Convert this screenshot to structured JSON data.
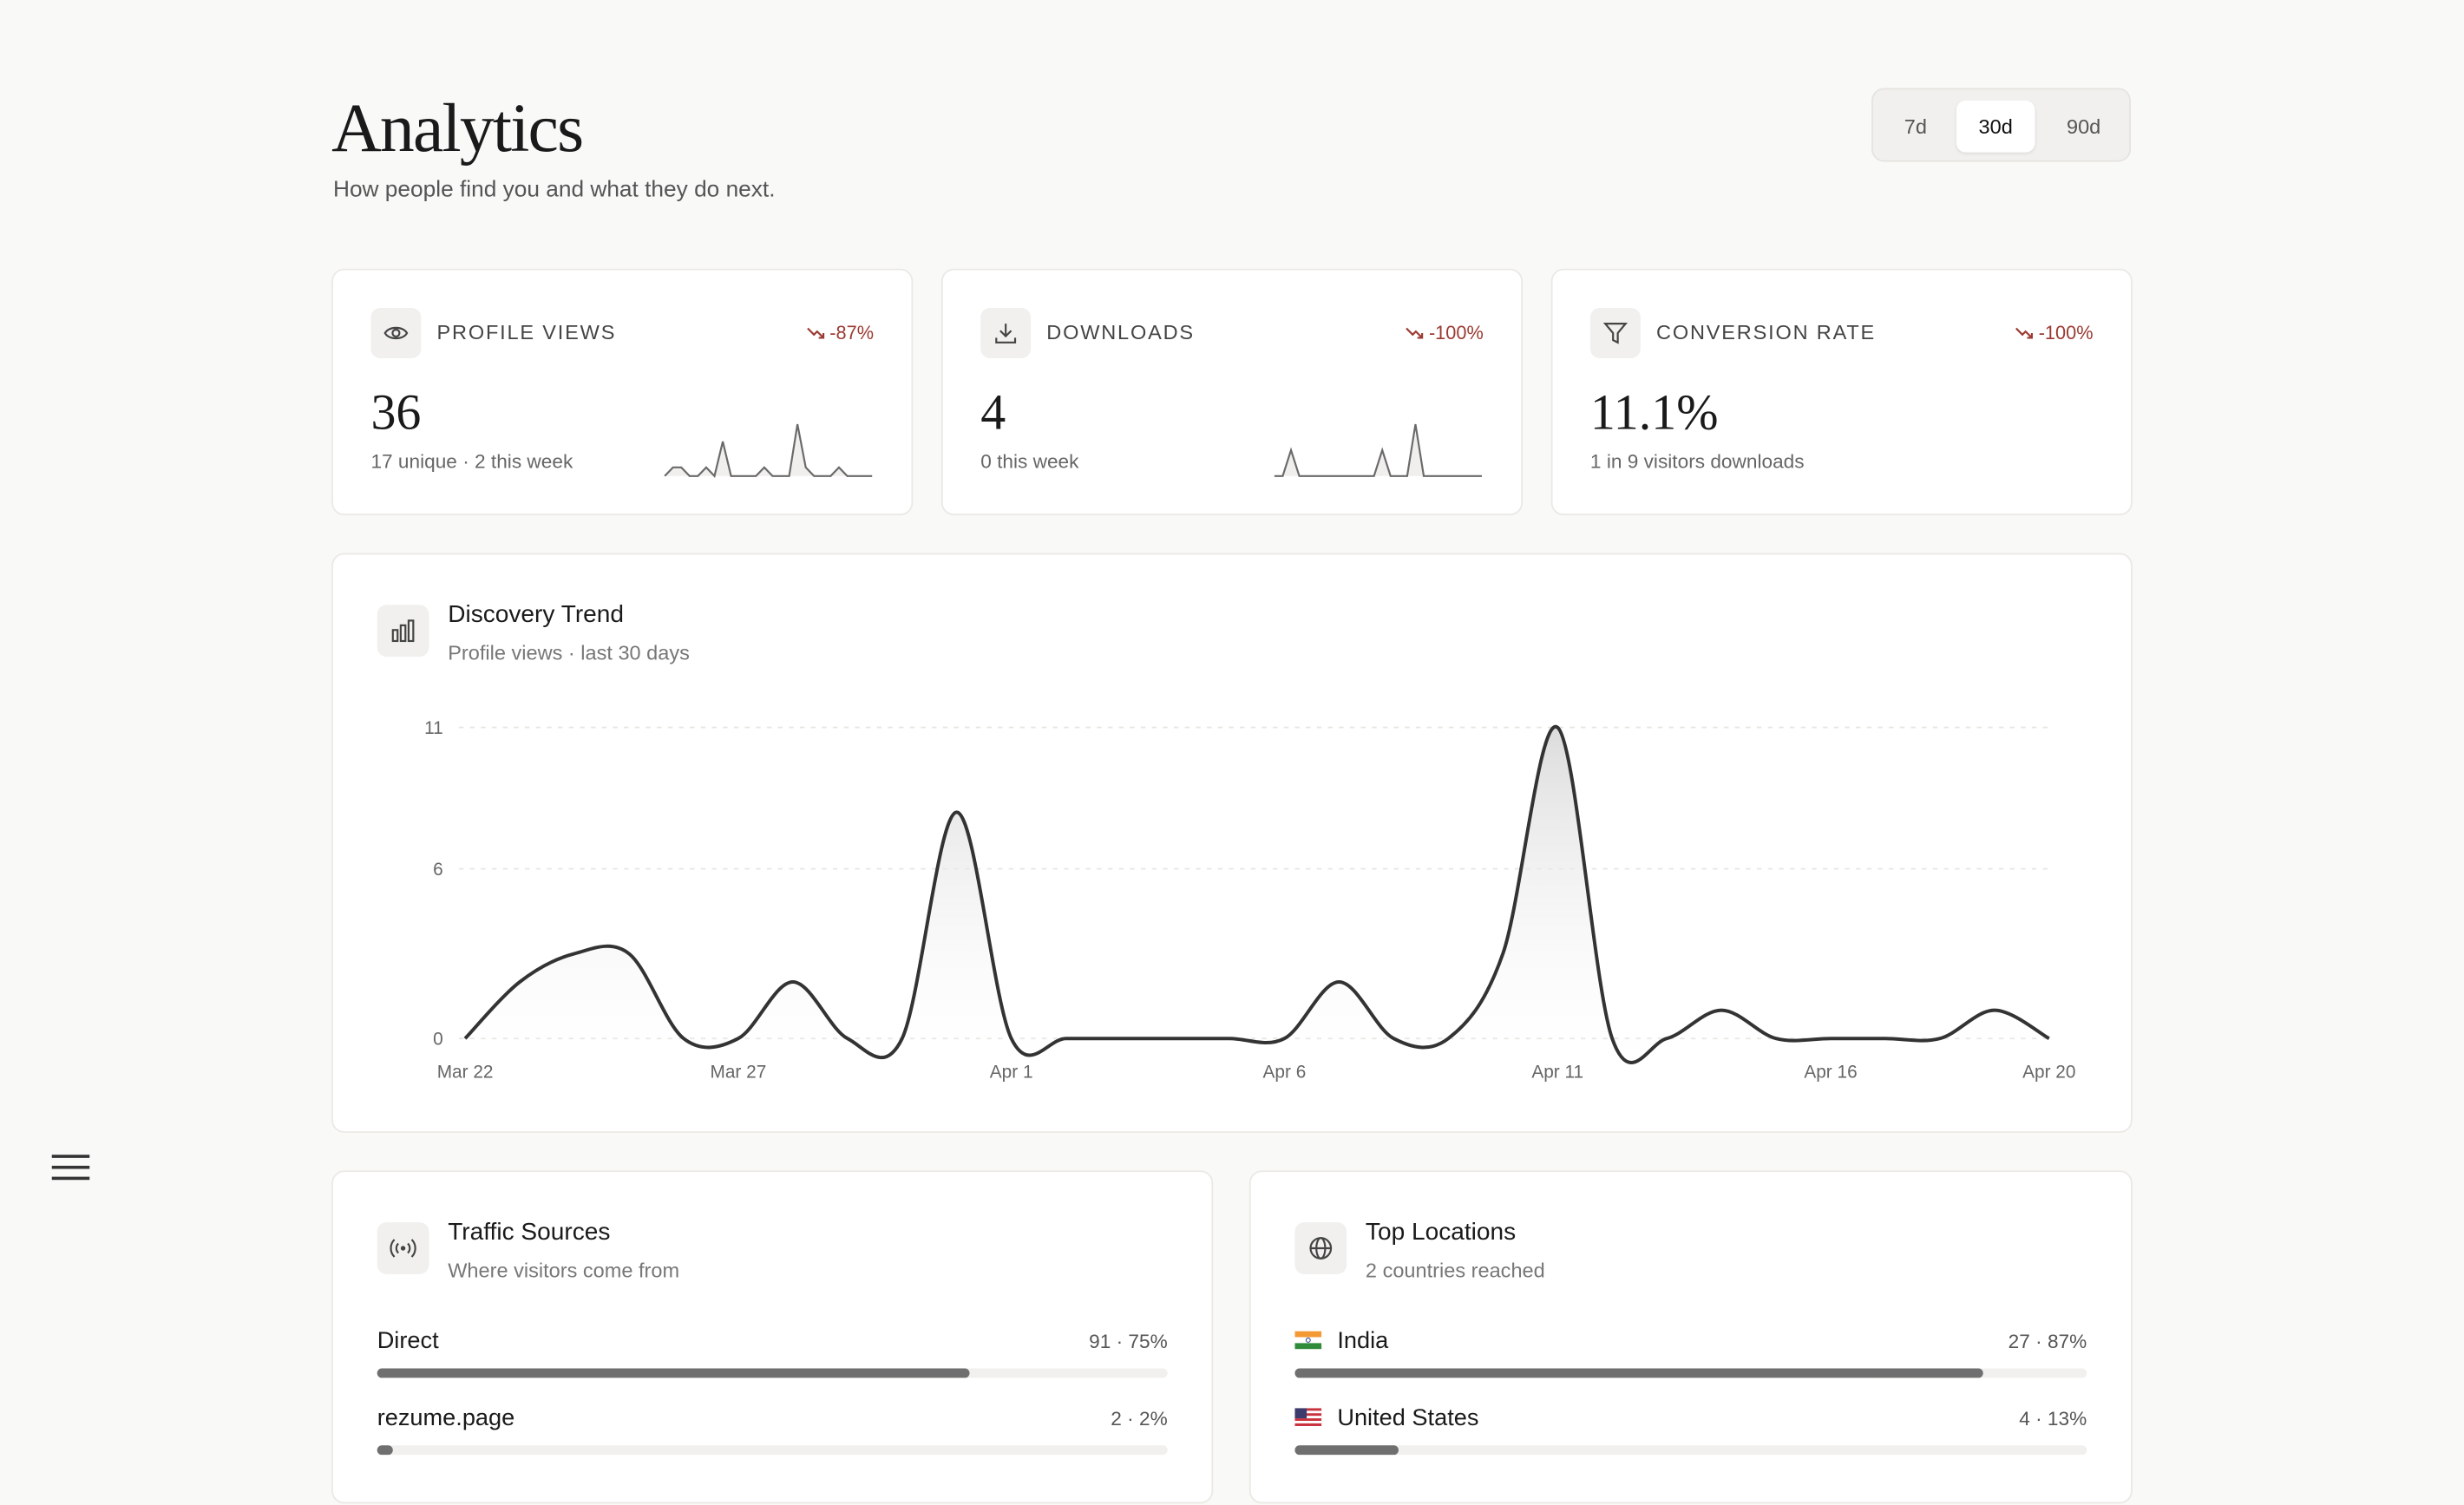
{
  "header": {
    "title": "Analytics",
    "subtitle": "How people find you and what they do next.",
    "ranges": [
      "7d",
      "30d",
      "90d"
    ],
    "active_range": "30d"
  },
  "kpis": [
    {
      "icon": "eye-icon",
      "label": "PROFILE VIEWS",
      "delta": "-87%",
      "value": "36",
      "sub": "17 unique · 2 this week",
      "sparkline": [
        0,
        1,
        1,
        0,
        0,
        1,
        0,
        4,
        0,
        0,
        0,
        0,
        1,
        0,
        0,
        0,
        6,
        1,
        0,
        0,
        0,
        1,
        0,
        0,
        0,
        0
      ]
    },
    {
      "icon": "download-icon",
      "label": "DOWNLOADS",
      "delta": "-100%",
      "value": "4",
      "sub": "0 this week",
      "sparkline": [
        0,
        0,
        1,
        0,
        0,
        0,
        0,
        0,
        0,
        0,
        0,
        0,
        0,
        1,
        0,
        0,
        0,
        2,
        0,
        0,
        0,
        0,
        0,
        0,
        0,
        0
      ]
    },
    {
      "icon": "filter-icon",
      "label": "CONVERSION RATE",
      "delta": "-100%",
      "value": "11.1%",
      "sub": "1 in 9 visitors downloads"
    }
  ],
  "trend": {
    "title": "Discovery Trend",
    "subtitle": "Profile views · last 30 days",
    "chart_data": {
      "type": "area",
      "x": [
        "Mar 22",
        "Mar 23",
        "Mar 24",
        "Mar 25",
        "Mar 26",
        "Mar 27",
        "Mar 28",
        "Mar 29",
        "Mar 30",
        "Mar 31",
        "Apr 1",
        "Apr 2",
        "Apr 3",
        "Apr 4",
        "Apr 5",
        "Apr 6",
        "Apr 7",
        "Apr 8",
        "Apr 9",
        "Apr 10",
        "Apr 11",
        "Apr 12",
        "Apr 13",
        "Apr 14",
        "Apr 15",
        "Apr 16",
        "Apr 17",
        "Apr 18",
        "Apr 19",
        "Apr 20"
      ],
      "values": [
        0,
        2,
        3,
        3,
        0,
        0,
        2,
        0,
        0,
        8,
        0,
        0,
        0,
        0,
        0,
        0,
        2,
        0,
        0,
        3,
        11,
        0,
        0,
        1,
        0,
        0,
        0,
        0,
        1,
        0
      ],
      "y_ticks": [
        0,
        6,
        11
      ],
      "x_ticks": [
        "Mar 22",
        "Mar 27",
        "Apr 1",
        "Apr 6",
        "Apr 11",
        "Apr 16",
        "Apr 20"
      ],
      "ylim": [
        0,
        11
      ],
      "grid": true
    }
  },
  "traffic": {
    "title": "Traffic Sources",
    "subtitle": "Where visitors come from",
    "rows": [
      {
        "label": "Direct",
        "value": "91 · 75%",
        "fraction": 0.75
      },
      {
        "label": "rezume.page",
        "value": "2 · 2%",
        "fraction": 0.02
      }
    ]
  },
  "locations": {
    "title": "Top Locations",
    "subtitle": "2 countries reached",
    "rows": [
      {
        "flag": "flag-india",
        "label": "India",
        "value": "27 · 87%",
        "fraction": 0.87
      },
      {
        "flag": "flag-united-states",
        "label": "United States",
        "value": "4 · 13%",
        "fraction": 0.13
      }
    ]
  },
  "menu": {
    "icon": "hamburger-menu-icon"
  }
}
